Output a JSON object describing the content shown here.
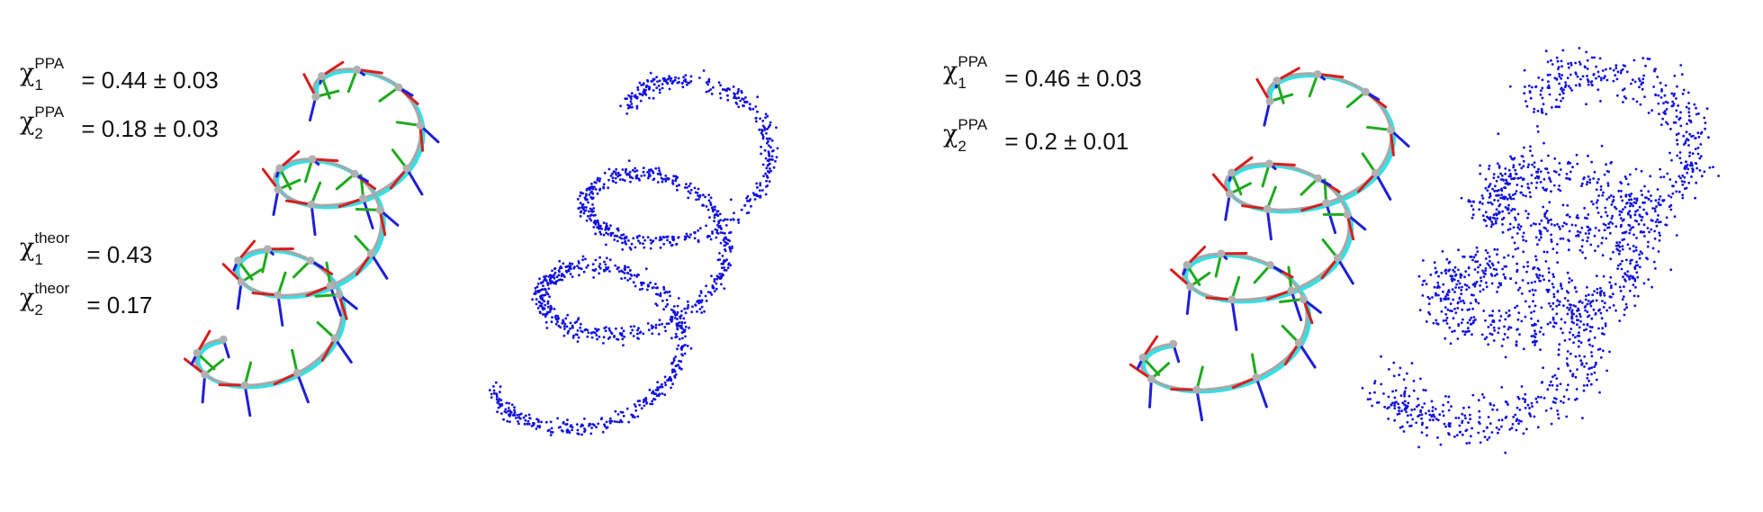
{
  "panels": [
    {
      "id": "left",
      "stats": [
        {
          "symbol": "χ",
          "sup": "PPA",
          "sub": "1",
          "value": "= 0.44 ± 0.03"
        },
        {
          "symbol": "χ",
          "sup": "PPA",
          "sub": "2",
          "value": "= 0.18 ± 0.03"
        },
        {
          "symbol": "χ",
          "sup": "theor",
          "sub": "1",
          "value": "= 0.43"
        },
        {
          "symbol": "χ",
          "sup": "theor",
          "sub": "2",
          "value": "= 0.17"
        }
      ],
      "noise": "narrow"
    },
    {
      "id": "right",
      "stats": [
        {
          "symbol": "χ",
          "sup": "PPA",
          "sub": "1",
          "value": "= 0.46 ± 0.03"
        },
        {
          "symbol": "χ",
          "sup": "PPA",
          "sub": "2",
          "value": "= 0.2 ± 0.01"
        }
      ],
      "noise": "wide"
    }
  ],
  "colors": {
    "curve_fit": "#33e0e6",
    "curve_theory": "#a8a8a8",
    "frame_x": "#d61f1f",
    "frame_y": "#1faa1f",
    "frame_z": "#1f1fd6",
    "points": "#1010e0",
    "node": "#b0b0b0"
  }
}
